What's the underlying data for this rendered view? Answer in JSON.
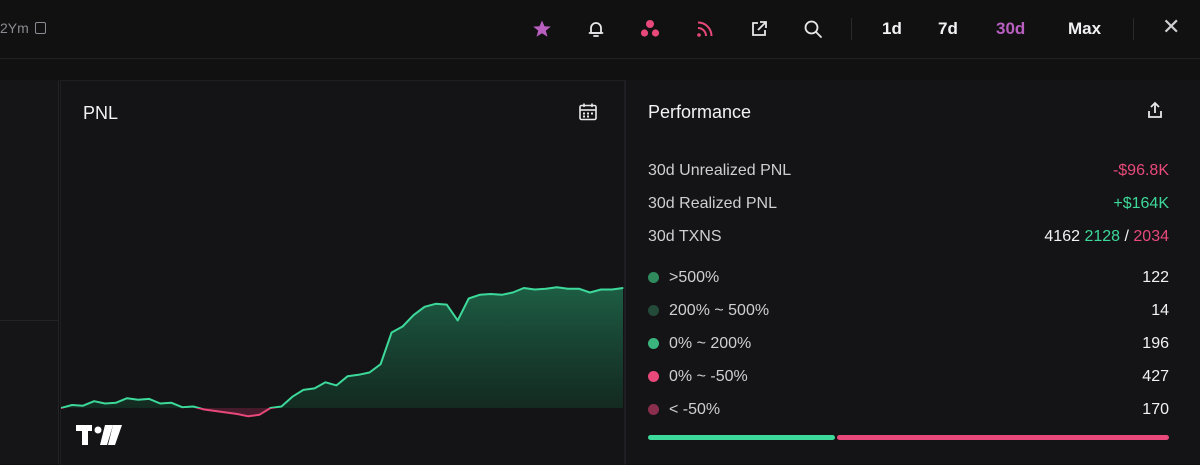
{
  "topbar": {
    "address": "2Ym",
    "icons": [
      "star-icon",
      "bell-icon",
      "dots-icon",
      "rss-icon",
      "external-link-icon",
      "search-icon"
    ],
    "ranges": [
      "1d",
      "7d",
      "30d",
      "Max"
    ],
    "active_range": "30d",
    "close": "✕"
  },
  "pnl_panel": {
    "title": "PNL",
    "logo_text": "TV"
  },
  "performance": {
    "title": "Performance",
    "unrealized_label": "30d Unrealized PNL",
    "unrealized_value": "-$96.8K",
    "realized_label": "30d Realized PNL",
    "realized_value": "+$164K",
    "txns_label": "30d TXNS",
    "txns_total": "4162",
    "txns_buy": "2128",
    "txns_sep": "/",
    "txns_sell": "2034",
    "distribution": [
      {
        "label": ">500%",
        "count": "122",
        "color": "#2f8a5e"
      },
      {
        "label": "200% ~ 500%",
        "count": "14",
        "color": "#244a3a"
      },
      {
        "label": "0% ~ 200%",
        "count": "196",
        "color": "#3bb57e"
      },
      {
        "label": "0% ~ -50%",
        "count": "427",
        "color": "#e8497a"
      },
      {
        "label": "< -50%",
        "count": "170",
        "color": "#8a2e4e"
      }
    ],
    "win_ratio": 0.36
  },
  "colors": {
    "positive": "#3dd99a",
    "negative": "#e8497a",
    "accent": "#b85fc0"
  },
  "chart_data": {
    "type": "area",
    "title": "PNL",
    "xlabel": "",
    "ylabel": "",
    "grid": false,
    "baseline": 0,
    "values": [
      0,
      4,
      3,
      9,
      6,
      7,
      13,
      11,
      12,
      6,
      7,
      1,
      2,
      -2,
      -4,
      -6,
      -8,
      -11,
      -9,
      0,
      2,
      15,
      24,
      26,
      34,
      30,
      42,
      44,
      47,
      58,
      100,
      108,
      123,
      134,
      138,
      137,
      116,
      145,
      150,
      151,
      150,
      153,
      159,
      157,
      158,
      160,
      158,
      158,
      153,
      157,
      157,
      159
    ]
  }
}
